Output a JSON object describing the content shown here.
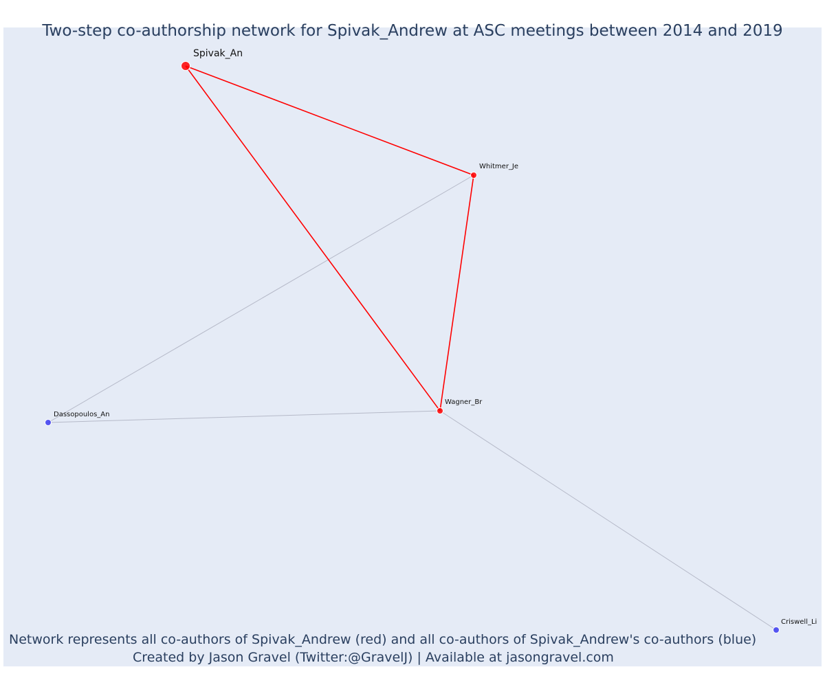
{
  "title": "Two-step co-authorship network for Spivak_Andrew at ASC meetings between 2014 and 2019",
  "caption": {
    "line1": "Network represents all co-authors of Spivak_Andrew (red) and all co-authors of Spivak_Andrew's co-authors (blue)",
    "line2": "Created by Jason Gravel (Twitter:@GravelJ) | Available at jasongravel.com"
  },
  "colors": {
    "background": "#e5ebf6",
    "red": "#ff0000",
    "blue": "#3b3bf0",
    "grey_edge": "#b5b9c8",
    "text": "#2a3f5f"
  },
  "network": {
    "nodes": [
      {
        "id": "spivak",
        "label": "Spivak_An",
        "group": "focal"
      },
      {
        "id": "whitmer",
        "label": "Whitmer_Je",
        "group": "coauthor"
      },
      {
        "id": "wagner",
        "label": "Wagner_Br",
        "group": "coauthor"
      },
      {
        "id": "dassopoulos",
        "label": "Dassopoulos_An",
        "group": "second-step"
      },
      {
        "id": "criswell",
        "label": "Criswell_Li",
        "group": "second-step"
      }
    ],
    "edges": [
      {
        "source": "spivak",
        "target": "whitmer",
        "type": "direct"
      },
      {
        "source": "spivak",
        "target": "wagner",
        "type": "direct"
      },
      {
        "source": "whitmer",
        "target": "wagner",
        "type": "direct"
      },
      {
        "source": "whitmer",
        "target": "dassopoulos",
        "type": "indirect"
      },
      {
        "source": "wagner",
        "target": "dassopoulos",
        "type": "indirect"
      },
      {
        "source": "wagner",
        "target": "criswell",
        "type": "indirect"
      }
    ]
  }
}
